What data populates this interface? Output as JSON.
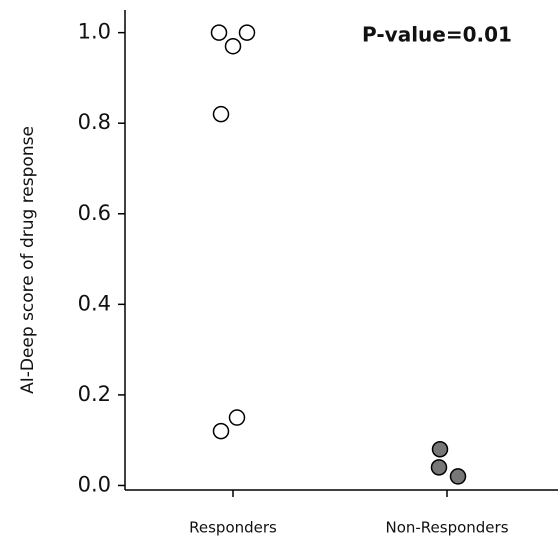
{
  "chart_data": {
    "type": "strip",
    "y_label": "AI-Deep score of drug response",
    "annotation": "P-value=0.01",
    "categories": [
      "Responders",
      "Non-Responders"
    ],
    "values": [
      [
        1.0,
        1.0,
        0.97,
        0.82,
        0.15,
        0.12
      ],
      [
        0.08,
        0.04,
        0.02
      ]
    ],
    "colors": [
      "#ffffff",
      "#777777"
    ],
    "ylim": [
      -0.01,
      1.05
    ],
    "yticks": [
      {
        "value": 0,
        "label": "0.0"
      },
      0.2,
      0.4,
      0.6,
      0.8,
      {
        "value": 1,
        "label": "1.0"
      }
    ]
  }
}
